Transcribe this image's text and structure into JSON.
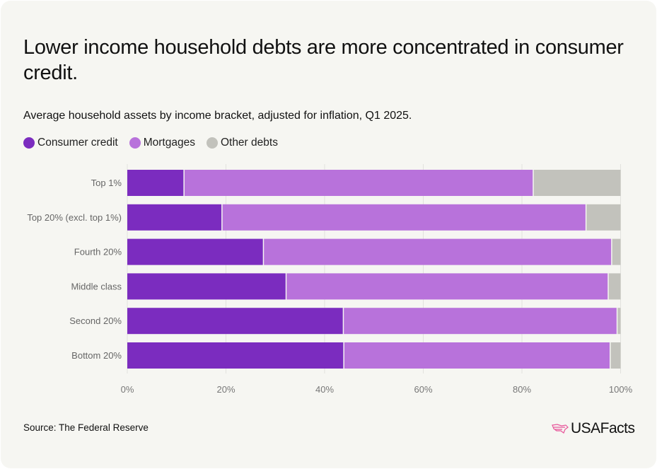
{
  "title": "Lower income household debts are more concentrated in consumer credit.",
  "subtitle": "Average household assets by income bracket, adjusted for inflation, Q1 2025.",
  "source": "Source: The Federal Reserve",
  "logo": "USAFacts",
  "chart_data": {
    "type": "bar",
    "orientation": "horizontal",
    "stacked": true,
    "categories": [
      "Top 1%",
      "Top 20% (excl. top 1%)",
      "Fourth 20%",
      "Middle class",
      "Second 20%",
      "Bottom 20%"
    ],
    "series": [
      {
        "name": "Consumer credit",
        "color": "#7b2cbf",
        "values": [
          11.6,
          19.3,
          27.7,
          32.3,
          43.9,
          44.0
        ]
      },
      {
        "name": "Mortgages",
        "color": "#b872db",
        "values": [
          70.8,
          73.8,
          70.6,
          65.3,
          55.5,
          54.0
        ]
      },
      {
        "name": "Other debts",
        "color": "#c2c2bc",
        "values": [
          17.6,
          6.9,
          1.7,
          2.4,
          0.6,
          2.0
        ]
      }
    ],
    "xlim": [
      0,
      100
    ],
    "xticks": [
      "0%",
      "20%",
      "40%",
      "60%",
      "80%",
      "100%"
    ],
    "xtick_values": [
      0,
      20,
      40,
      60,
      80,
      100
    ],
    "grid": true,
    "legend_position": "top-left"
  }
}
